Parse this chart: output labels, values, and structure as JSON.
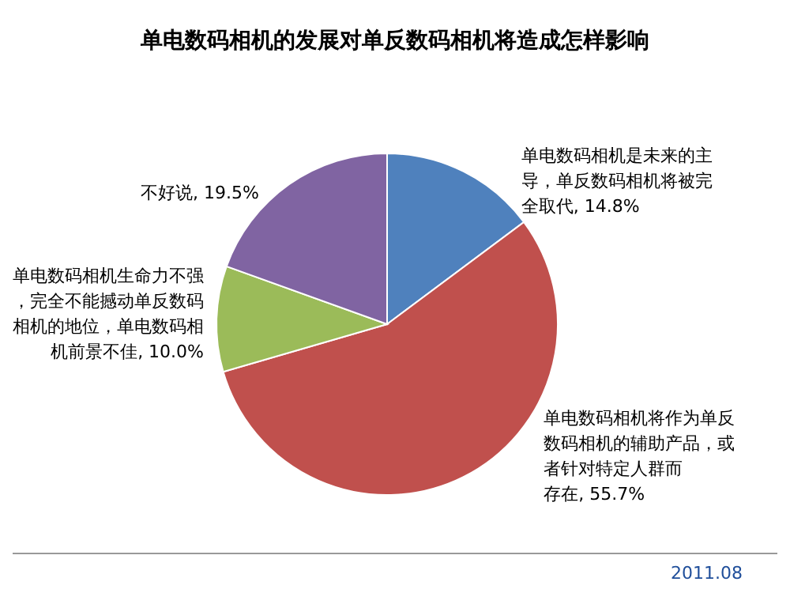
{
  "chart_data": {
    "type": "pie",
    "title": "单电数码相机的发展对单反数码相机将造成怎样影响",
    "categories": [
      "单电数码相机是未来的主导，单反数码相机将被完全取代",
      "单电数码相机将作为单反数码相机的辅助产品，或者针对特定人群而存在",
      "单电数码相机生命力不强，完全不能撼动单反数码相机的地位，单电数码相机前景不佳",
      "不好说"
    ],
    "values": [
      14.8,
      55.7,
      10.0,
      19.5
    ],
    "value_labels": [
      "14.8%",
      "55.7%",
      "10.0%",
      "19.5%"
    ],
    "colors": [
      "#4f81bd",
      "#c0504d",
      "#9bbb59",
      "#8064a2"
    ],
    "annotations": [
      "2011.08"
    ]
  }
}
